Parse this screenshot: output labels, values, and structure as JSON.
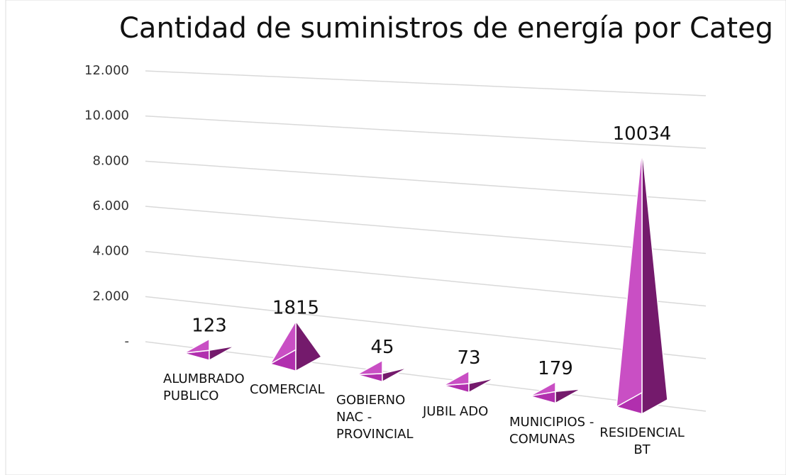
{
  "chart_data": {
    "type": "pyramid",
    "title": "Cantidad de suministros de energía por Categ",
    "categories": [
      "ALUMBRADO PUBLICO",
      "COMERCIAL",
      "GOBIERNO NAC - PROVINCIAL",
      "JUBIL ADO",
      "MUNICIPIOS - COMUNAS",
      "RESIDENCIAL BT"
    ],
    "values": [
      123,
      1815,
      45,
      73,
      179,
      10034
    ],
    "color": "#b12fae",
    "ylim": [
      0,
      12000
    ],
    "yticks": [
      {
        "value": 0,
        "label": "-"
      },
      {
        "value": 2000,
        "label": "2.000"
      },
      {
        "value": 4000,
        "label": "4.000"
      },
      {
        "value": 6000,
        "label": "6.000"
      },
      {
        "value": 8000,
        "label": "8.000"
      },
      {
        "value": 10000,
        "label": "10.000"
      },
      {
        "value": 12000,
        "label": "12.000"
      }
    ],
    "grid": true
  }
}
